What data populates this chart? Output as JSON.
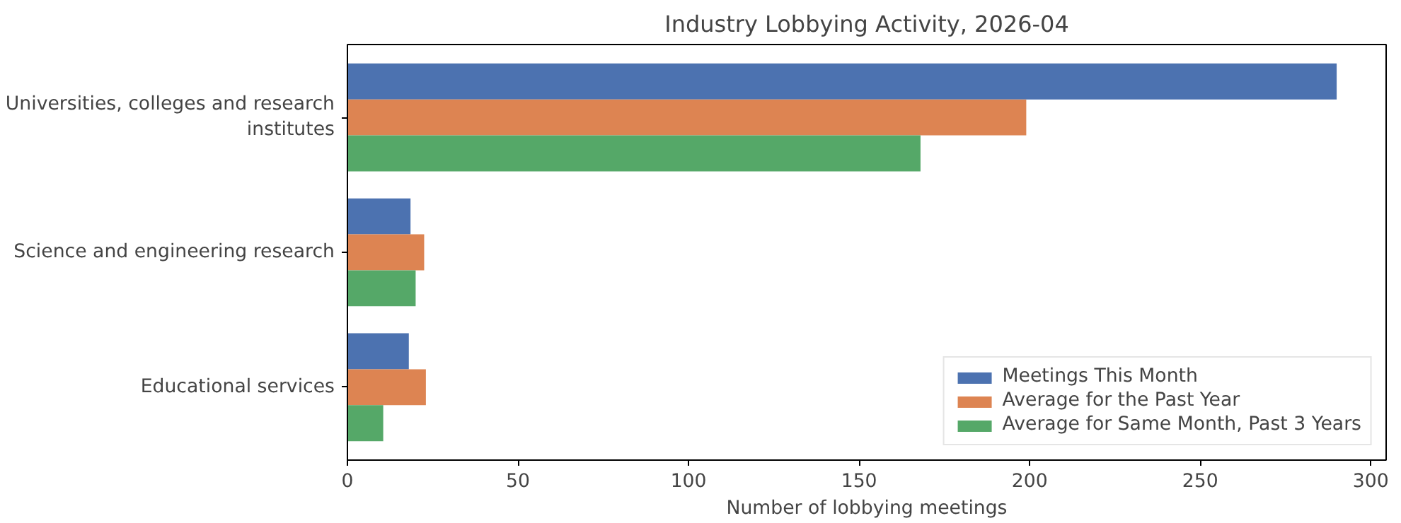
{
  "chart_data": {
    "type": "bar",
    "orientation": "horizontal",
    "title": "Industry Lobbying Activity, 2026-04",
    "xlabel": "Number of lobbying meetings",
    "categories": [
      "Universities, colleges and research institutes",
      "Science and engineering research",
      "Educational services"
    ],
    "series": [
      {
        "name": "Meetings This Month",
        "color": "#4c72b0",
        "values": [
          290,
          18.5,
          18
        ]
      },
      {
        "name": "Average for the Past Year",
        "color": "#dd8452",
        "values": [
          199,
          22.5,
          23
        ]
      },
      {
        "name": "Average for Same Month, Past 3 Years",
        "color": "#55a868",
        "values": [
          168,
          20,
          10.5
        ]
      }
    ],
    "xlim": [
      0,
      304.5
    ],
    "xticks": [
      0,
      50,
      100,
      150,
      200,
      250,
      300
    ],
    "grid": false,
    "legend": "bottom right"
  }
}
